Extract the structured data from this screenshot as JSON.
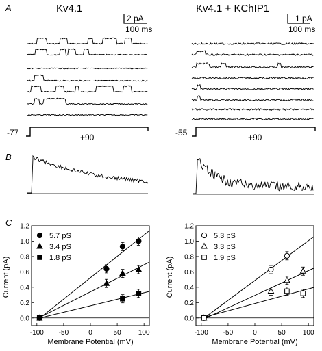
{
  "panels": {
    "A": "A",
    "B": "B",
    "C": "C"
  },
  "panel_a": {
    "left": {
      "title": "Kv4.1",
      "scale_current": "2 pA",
      "scale_time": "100 ms",
      "holding_potential": "-77",
      "step_potential": "+90"
    },
    "right": {
      "title": "Kv4.1 + KChIP1",
      "scale_current": "1 pA",
      "scale_time": "100 ms",
      "holding_potential": "-55",
      "step_potential": "+90"
    }
  },
  "chart_data": [
    {
      "type": "scatter",
      "xlabel": "Membrane Potential (mV)",
      "ylabel": "Current (pA)",
      "xlim": [
        -110,
        110
      ],
      "ylim": [
        -0.1,
        1.2
      ],
      "xticks": [
        "-100",
        "-50",
        "0",
        "50",
        "100"
      ],
      "yticks": [
        "0.0",
        "0.2",
        "0.4",
        "0.6",
        "0.8",
        "1.0",
        "1.2"
      ],
      "series": [
        {
          "name": "5.7 pS",
          "marker": "filled-circle",
          "x": [
            -95,
            30,
            60,
            90
          ],
          "y": [
            0.0,
            0.64,
            0.93,
            1.0
          ]
        },
        {
          "name": "3.4 pS",
          "marker": "filled-triangle",
          "x": [
            -95,
            30,
            60,
            90
          ],
          "y": [
            0.0,
            0.45,
            0.58,
            0.63
          ]
        },
        {
          "name": "1.8 pS",
          "marker": "filled-square",
          "x": [
            -95,
            60,
            90
          ],
          "y": [
            0.0,
            0.25,
            0.32
          ]
        }
      ]
    },
    {
      "type": "scatter",
      "xlabel": "Membrane Potential (mV)",
      "ylabel": "Current (pA)",
      "xlim": [
        -110,
        110
      ],
      "ylim": [
        -0.1,
        1.2
      ],
      "xticks": [
        "-100",
        "-50",
        "0",
        "50",
        "100"
      ],
      "yticks": [
        "0.0",
        "0.2",
        "0.4",
        "0.6",
        "0.8",
        "1.0",
        "1.2"
      ],
      "series": [
        {
          "name": "5.3 pS",
          "marker": "open-circle",
          "x": [
            -95,
            30,
            60
          ],
          "y": [
            0.0,
            0.63,
            0.81
          ]
        },
        {
          "name": "3.3 pS",
          "marker": "open-triangle",
          "x": [
            -95,
            30,
            60,
            90
          ],
          "y": [
            0.0,
            0.35,
            0.49,
            0.61
          ]
        },
        {
          "name": "1.9 pS",
          "marker": "open-square",
          "x": [
            -95,
            60,
            90
          ],
          "y": [
            0.0,
            0.35,
            0.32
          ]
        }
      ]
    }
  ]
}
